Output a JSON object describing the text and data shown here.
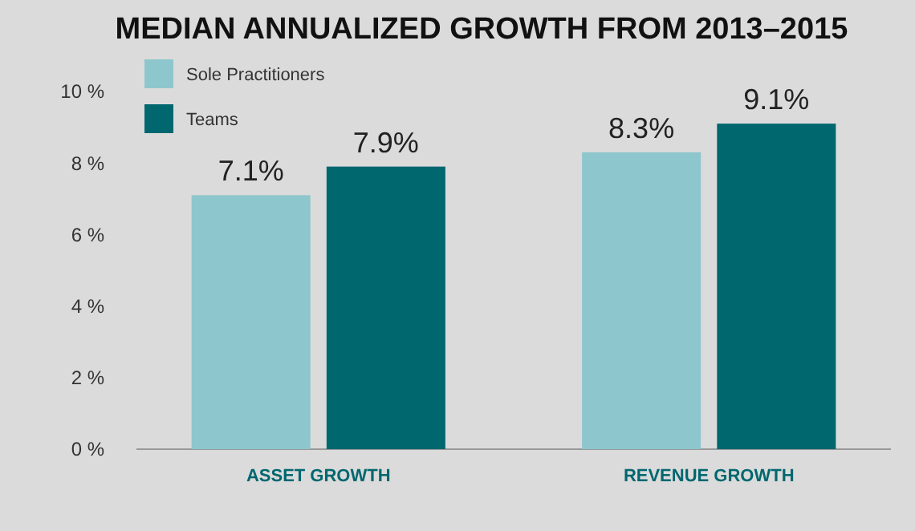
{
  "chart_data": {
    "type": "bar",
    "title": "MEDIAN ANNUALIZED GROWTH FROM 2013–2015",
    "categories": [
      "ASSET GROWTH",
      "REVENUE GROWTH"
    ],
    "series": [
      {
        "name": "Sole Practitioners",
        "color": "#8ec6cd",
        "values": [
          7.1,
          8.3
        ],
        "value_labels": [
          "7.1%",
          "8.3%"
        ]
      },
      {
        "name": "Teams",
        "color": "#00676f",
        "values": [
          7.9,
          9.1
        ],
        "value_labels": [
          "7.9%",
          "9.1%"
        ]
      }
    ],
    "ylim": [
      0,
      10
    ],
    "yticks": [
      {
        "value": 0,
        "label": "0 %"
      },
      {
        "value": 2,
        "label": "2 %"
      },
      {
        "value": 4,
        "label": "4 %"
      },
      {
        "value": 6,
        "label": "6 %"
      },
      {
        "value": 8,
        "label": "8 %"
      },
      {
        "value": 10,
        "label": "10 %"
      }
    ],
    "legend": "top left",
    "grid": false
  }
}
